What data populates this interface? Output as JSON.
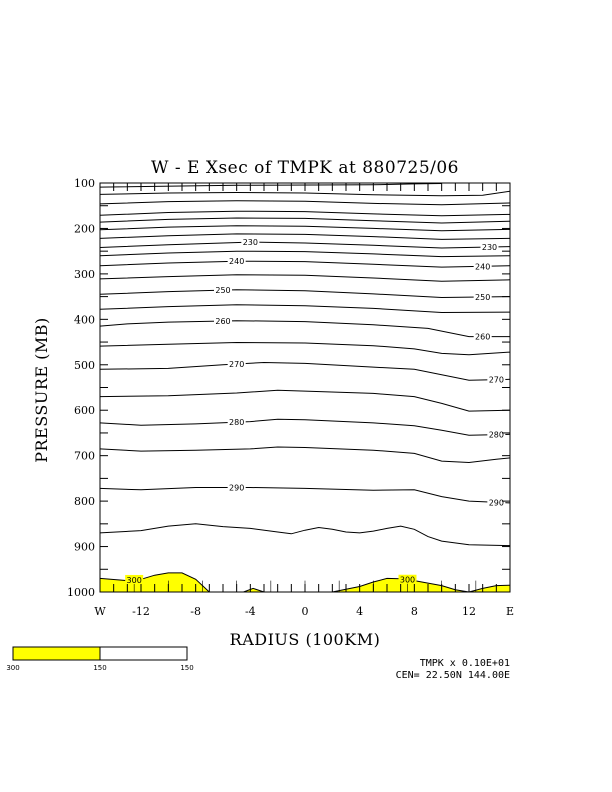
{
  "chart_data": {
    "type": "contour",
    "title": "W - E Xsec of TMPK at 880725/06",
    "xlabel": "RADIUS (100KM)",
    "ylabel": "PRESSURE (MB)",
    "xlim": [
      -15,
      15
    ],
    "ylim": [
      1000,
      100
    ],
    "x_ticks": [
      {
        "x": -15,
        "label": "W"
      },
      {
        "x": -12,
        "label": "-12"
      },
      {
        "x": -8,
        "label": "-8"
      },
      {
        "x": -4,
        "label": "-4"
      },
      {
        "x": 0,
        "label": "0"
      },
      {
        "x": 4,
        "label": "4"
      },
      {
        "x": 8,
        "label": "8"
      },
      {
        "x": 12,
        "label": "12"
      },
      {
        "x": 15,
        "label": "E"
      }
    ],
    "y_ticks": [
      {
        "p": 100,
        "label": "100"
      },
      {
        "p": 200,
        "label": "200"
      },
      {
        "p": 300,
        "label": "300"
      },
      {
        "p": 400,
        "label": "400"
      },
      {
        "p": 500,
        "label": "500"
      },
      {
        "p": 600,
        "label": "600"
      },
      {
        "p": 700,
        "label": "700"
      },
      {
        "p": 800,
        "label": "800"
      },
      {
        "p": 900,
        "label": "900"
      },
      {
        "p": 1000,
        "label": "1000"
      }
    ],
    "x_grid": [
      -15,
      -12.5,
      -10,
      -7.5,
      -5,
      -2.5,
      0,
      2.5,
      5,
      7.5,
      10,
      12.5,
      15
    ],
    "contour_interval": 5,
    "fill": {
      "threshold": 300,
      "color": "#ffff00"
    },
    "contours": [
      {
        "level": 195,
        "label": "",
        "points": [
          [
            -15,
            109
          ],
          [
            -5,
            105
          ],
          [
            5,
            104
          ],
          [
            8,
            102
          ],
          [
            10,
            101
          ]
        ]
      },
      {
        "level": 200,
        "label": "",
        "points": [
          [
            -15,
            125
          ],
          [
            -10,
            122
          ],
          [
            -5,
            121
          ],
          [
            0,
            122
          ],
          [
            5,
            126
          ],
          [
            10,
            128
          ],
          [
            13,
            127
          ],
          [
            15,
            118
          ]
        ]
      },
      {
        "level": 205,
        "label": "",
        "points": [
          [
            -15,
            146
          ],
          [
            -10,
            141
          ],
          [
            -5,
            139
          ],
          [
            0,
            140
          ],
          [
            5,
            145
          ],
          [
            10,
            148
          ],
          [
            15,
            144
          ]
        ]
      },
      {
        "level": 210,
        "label": "",
        "points": [
          [
            -15,
            171
          ],
          [
            -10,
            165
          ],
          [
            -5,
            162
          ],
          [
            0,
            163
          ],
          [
            5,
            168
          ],
          [
            10,
            172
          ],
          [
            15,
            169
          ]
        ]
      },
      {
        "level": 215,
        "label": "",
        "points": [
          [
            -15,
            186
          ],
          [
            -10,
            180
          ],
          [
            -5,
            177
          ],
          [
            0,
            178
          ],
          [
            5,
            183
          ],
          [
            10,
            188
          ],
          [
            15,
            184
          ]
        ]
      },
      {
        "level": 220,
        "label": "",
        "points": [
          [
            -15,
            203
          ],
          [
            -10,
            197
          ],
          [
            -5,
            194
          ],
          [
            0,
            195
          ],
          [
            5,
            200
          ],
          [
            10,
            205
          ],
          [
            15,
            202
          ]
        ]
      },
      {
        "level": 225,
        "label": "",
        "points": [
          [
            -15,
            222
          ],
          [
            -10,
            216
          ],
          [
            -5,
            212
          ],
          [
            0,
            213
          ],
          [
            5,
            218
          ],
          [
            10,
            224
          ],
          [
            15,
            222
          ]
        ]
      },
      {
        "level": 230,
        "label": "230",
        "points": [
          [
            -15,
            242
          ],
          [
            -10,
            236
          ],
          [
            -4,
            230
          ],
          [
            0,
            232
          ],
          [
            5,
            237
          ],
          [
            10,
            243
          ],
          [
            15,
            240
          ]
        ]
      },
      {
        "level": 235,
        "label": "",
        "points": [
          [
            -15,
            260
          ],
          [
            -10,
            254
          ],
          [
            -5,
            250
          ],
          [
            0,
            251
          ],
          [
            5,
            256
          ],
          [
            10,
            262
          ],
          [
            15,
            260
          ]
        ]
      },
      {
        "level": 240,
        "label": "240",
        "points": [
          [
            -15,
            282
          ],
          [
            -10,
            276
          ],
          [
            -5,
            272
          ],
          [
            0,
            273
          ],
          [
            5,
            279
          ],
          [
            10,
            285
          ],
          [
            15,
            282
          ]
        ]
      },
      {
        "level": 245,
        "label": "",
        "points": [
          [
            -15,
            311
          ],
          [
            -10,
            306
          ],
          [
            -5,
            302
          ],
          [
            0,
            303
          ],
          [
            5,
            309
          ],
          [
            10,
            316
          ],
          [
            15,
            313
          ]
        ]
      },
      {
        "level": 250,
        "label": "250",
        "points": [
          [
            -15,
            345
          ],
          [
            -10,
            339
          ],
          [
            -5,
            335
          ],
          [
            0,
            337
          ],
          [
            5,
            344
          ],
          [
            10,
            352
          ],
          [
            15,
            350
          ]
        ]
      },
      {
        "level": 255,
        "label": "",
        "points": [
          [
            -15,
            378
          ],
          [
            -10,
            372
          ],
          [
            -5,
            368
          ],
          [
            0,
            370
          ],
          [
            5,
            376
          ],
          [
            10,
            385
          ],
          [
            15,
            384
          ]
        ]
      },
      {
        "level": 260,
        "label": "260",
        "points": [
          [
            -15,
            415
          ],
          [
            -13,
            410
          ],
          [
            -10,
            406
          ],
          [
            -5,
            403
          ],
          [
            0,
            405
          ],
          [
            5,
            412
          ],
          [
            9,
            420
          ],
          [
            12,
            438
          ],
          [
            15,
            438
          ]
        ]
      },
      {
        "level": 265,
        "label": "",
        "points": [
          [
            -15,
            459
          ],
          [
            -10,
            455
          ],
          [
            -5,
            451
          ],
          [
            0,
            452
          ],
          [
            5,
            458
          ],
          [
            8,
            465
          ],
          [
            10,
            475
          ],
          [
            12,
            478
          ],
          [
            15,
            472
          ]
        ]
      },
      {
        "level": 270,
        "label": "270",
        "points": [
          [
            -15,
            510
          ],
          [
            -10,
            508
          ],
          [
            -6,
            500
          ],
          [
            -3,
            495
          ],
          [
            0,
            497
          ],
          [
            5,
            505
          ],
          [
            8,
            510
          ],
          [
            10,
            522
          ],
          [
            12,
            534
          ],
          [
            15,
            532
          ]
        ]
      },
      {
        "level": 275,
        "label": "",
        "points": [
          [
            -15,
            570
          ],
          [
            -10,
            568
          ],
          [
            -5,
            562
          ],
          [
            -2,
            556
          ],
          [
            0,
            558
          ],
          [
            5,
            563
          ],
          [
            8,
            570
          ],
          [
            10,
            585
          ],
          [
            12,
            602
          ],
          [
            15,
            600
          ]
        ]
      },
      {
        "level": 280,
        "label": "280",
        "points": [
          [
            -15,
            628
          ],
          [
            -12,
            633
          ],
          [
            -8,
            630
          ],
          [
            -4,
            625
          ],
          [
            -2,
            620
          ],
          [
            0,
            621
          ],
          [
            5,
            628
          ],
          [
            8,
            634
          ],
          [
            10,
            644
          ],
          [
            12,
            655
          ],
          [
            15,
            653
          ]
        ]
      },
      {
        "level": 285,
        "label": "",
        "points": [
          [
            -15,
            685
          ],
          [
            -12,
            690
          ],
          [
            -8,
            688
          ],
          [
            -4,
            685
          ],
          [
            -2,
            681
          ],
          [
            0,
            682
          ],
          [
            5,
            688
          ],
          [
            8,
            695
          ],
          [
            10,
            712
          ],
          [
            12,
            715
          ],
          [
            14,
            708
          ],
          [
            15,
            705
          ]
        ]
      },
      {
        "level": 290,
        "label": "290",
        "points": [
          [
            -15,
            772
          ],
          [
            -12,
            775
          ],
          [
            -8,
            770
          ],
          [
            -4,
            770
          ],
          [
            0,
            772
          ],
          [
            5,
            776
          ],
          [
            8,
            775
          ],
          [
            10,
            790
          ],
          [
            12,
            800
          ],
          [
            15,
            804
          ]
        ]
      },
      {
        "level": 295,
        "label": "",
        "points": [
          [
            -15,
            870
          ],
          [
            -12,
            865
          ],
          [
            -10,
            855
          ],
          [
            -8,
            850
          ],
          [
            -6,
            856
          ],
          [
            -4,
            860
          ],
          [
            -2,
            868
          ],
          [
            -1,
            872
          ],
          [
            0,
            864
          ],
          [
            1,
            858
          ],
          [
            2,
            862
          ],
          [
            3,
            868
          ],
          [
            4,
            870
          ],
          [
            5,
            866
          ],
          [
            6,
            860
          ],
          [
            7,
            855
          ],
          [
            8,
            862
          ],
          [
            9,
            878
          ],
          [
            10,
            888
          ],
          [
            12,
            896
          ],
          [
            15,
            898
          ]
        ]
      },
      {
        "level": 300,
        "label": "300",
        "points": [
          [
            -15,
            970
          ],
          [
            -13,
            975
          ],
          [
            -12,
            972
          ],
          [
            -11,
            963
          ],
          [
            -10,
            958
          ],
          [
            -9,
            958
          ],
          [
            -8,
            972
          ],
          [
            -7,
            1000
          ]
        ]
      },
      {
        "level": 300,
        "label": "",
        "points": [
          [
            -4.5,
            1000
          ],
          [
            -3.8,
            992
          ],
          [
            -3,
            1000
          ]
        ]
      },
      {
        "level": 300,
        "label": "300",
        "points": [
          [
            2,
            1000
          ],
          [
            4,
            988
          ],
          [
            5,
            978
          ],
          [
            6,
            970
          ],
          [
            7,
            971
          ],
          [
            8,
            975
          ],
          [
            10,
            986
          ],
          [
            11,
            995
          ],
          [
            12,
            1000
          ]
        ]
      },
      {
        "level": 300,
        "label": "",
        "points": [
          [
            12,
            1000
          ],
          [
            13,
            992
          ],
          [
            14,
            986
          ],
          [
            15,
            985
          ]
        ]
      }
    ],
    "colorbar": {
      "colors": [
        "#ffff00",
        "#ffffff"
      ],
      "ticks": [
        "300",
        "150",
        "150"
      ]
    }
  },
  "footer": {
    "scale": "TMPK x  0.10E+01",
    "center": "CEN= 22.50N  144.00E"
  }
}
